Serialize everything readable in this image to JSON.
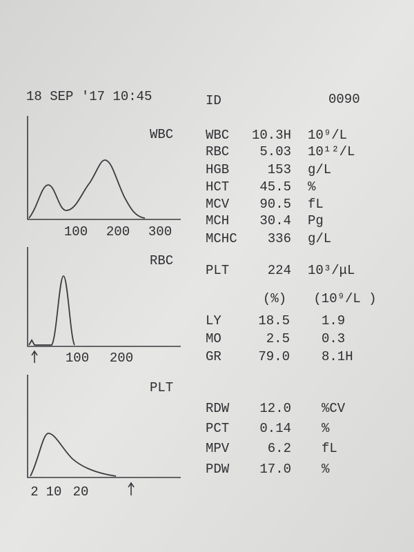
{
  "header": {
    "datetime": "18 SEP '17 10:45",
    "id_label": "ID",
    "id_value": "0090"
  },
  "histograms": [
    {
      "label": "WBC",
      "ticks": [
        "100",
        "200",
        "300"
      ]
    },
    {
      "label": "RBC",
      "ticks": [
        "100",
        "200"
      ]
    },
    {
      "label": "PLT",
      "ticks": [
        "2",
        "10",
        "20"
      ]
    }
  ],
  "results": [
    [
      "WBC",
      "10.3H",
      "10⁹/L"
    ],
    [
      "RBC",
      "5.03",
      "10¹²/L"
    ],
    [
      "HGB",
      "153",
      "g/L"
    ],
    [
      "HCT",
      "45.5",
      "%"
    ],
    [
      "MCV",
      "90.5",
      "fL"
    ],
    [
      "MCH",
      "30.4",
      "Pg"
    ],
    [
      "MCHC",
      "336",
      "g/L"
    ],
    [
      "PLT",
      "224",
      "10³/μL"
    ]
  ],
  "differential": {
    "header": [
      "(%)",
      "(10⁹/L )"
    ],
    "rows": [
      [
        "LY",
        "18.5",
        "1.9"
      ],
      [
        "MO",
        "2.5",
        "0.3"
      ],
      [
        "GR",
        "79.0",
        "8.1H"
      ]
    ]
  },
  "indices": [
    [
      "RDW",
      "12.0",
      "%CV"
    ],
    [
      "PCT",
      "0.14",
      "%"
    ],
    [
      "MPV",
      "6.2",
      "fL"
    ],
    [
      "PDW",
      "17.0",
      "%"
    ]
  ]
}
